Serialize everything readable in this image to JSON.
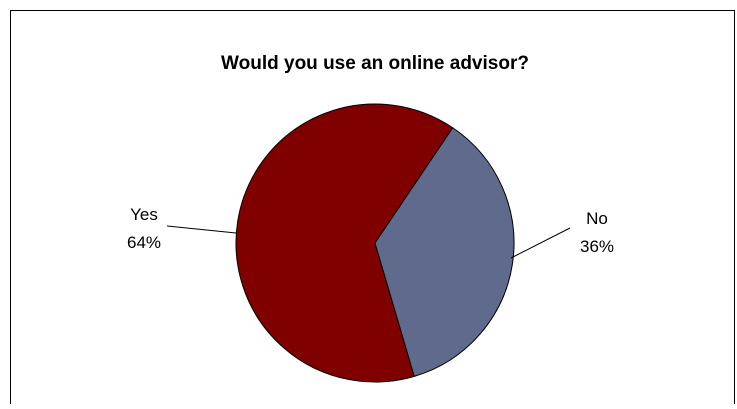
{
  "chart_data": {
    "type": "pie",
    "title": "Would you use an online advisor?",
    "categories": [
      "Yes",
      "No"
    ],
    "values": [
      64,
      36
    ],
    "data_labels": [
      "64%",
      "36%"
    ],
    "colors": [
      "#800000",
      "#5f6a8c"
    ],
    "legend": "none",
    "grid": false
  }
}
